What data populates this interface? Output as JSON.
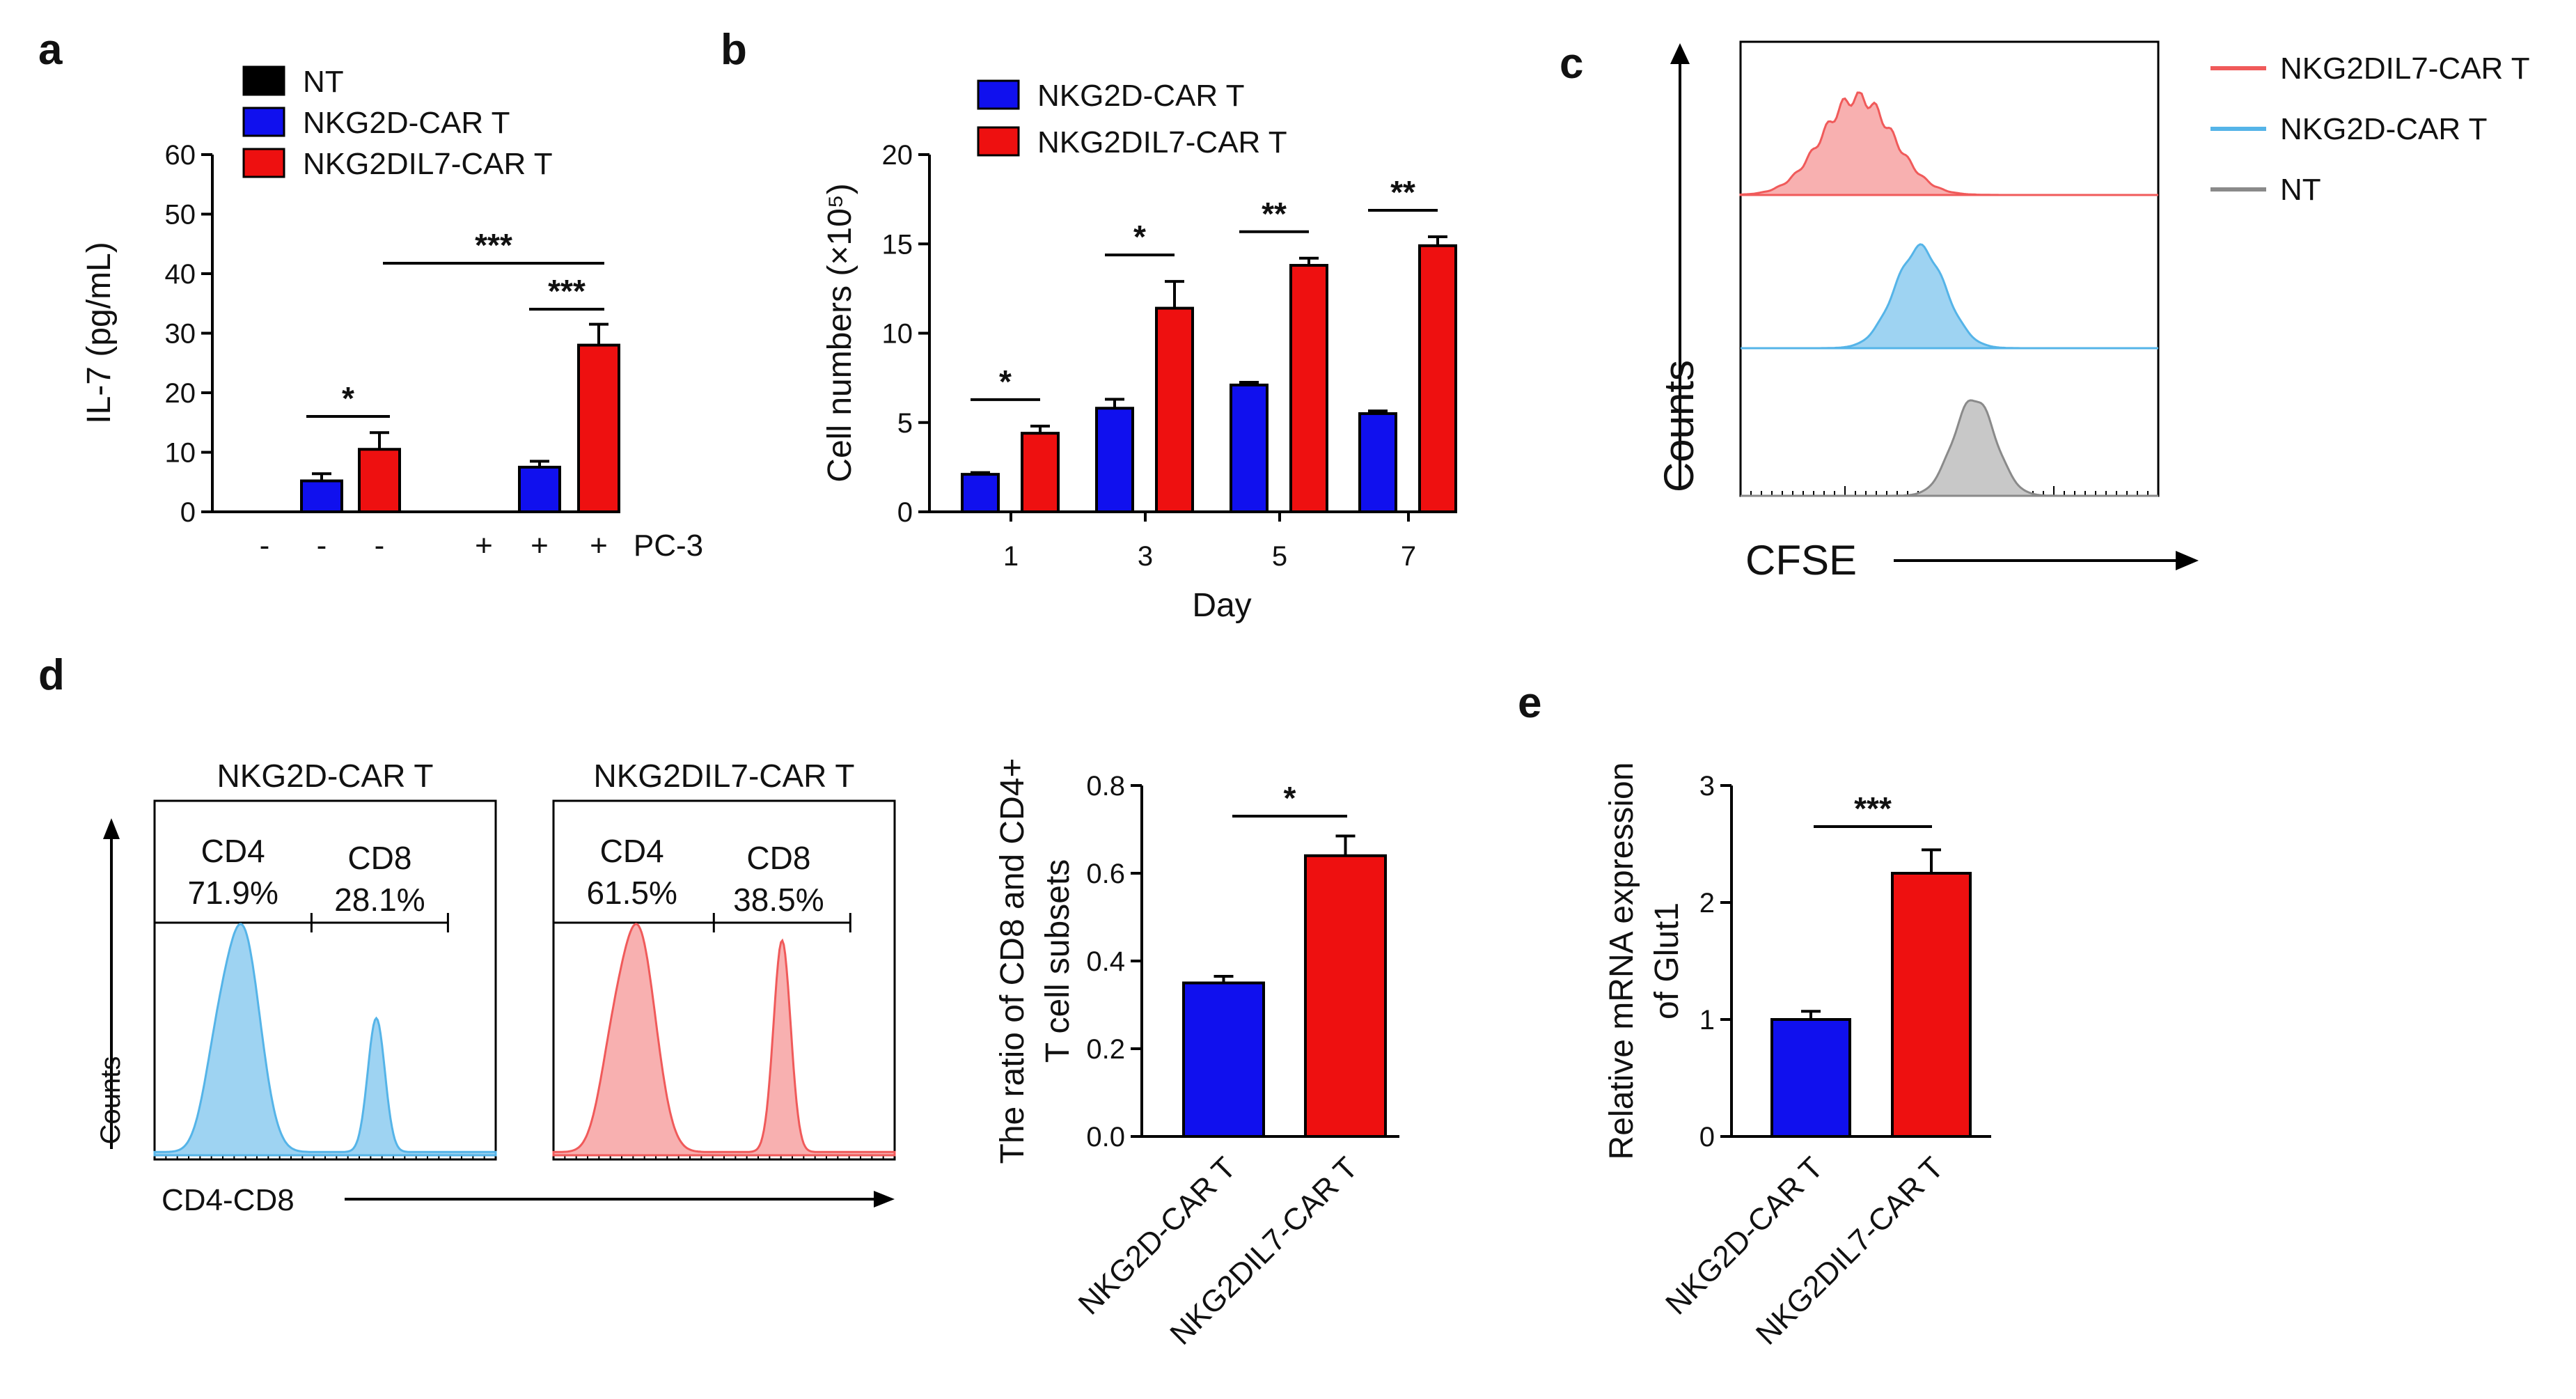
{
  "figure": {
    "panels": {
      "a": {
        "letter": "a"
      },
      "b": {
        "letter": "b"
      },
      "c": {
        "letter": "c"
      },
      "d": {
        "letter": "d"
      },
      "e": {
        "letter": "e"
      }
    }
  },
  "colors": {
    "nt": "#000000",
    "nkg2d": "#1010EE",
    "nkg2dil7": "#EE1010",
    "flow_blue": "#55B4E8",
    "flow_blue_fill": "#9ED3F2",
    "flow_red": "#F05A5A",
    "flow_red_fill": "#F8B0B0",
    "flow_grey": "#8A8A8A",
    "flow_grey_fill": "#C8C8C8"
  },
  "chart_data": [
    {
      "id": "a",
      "type": "bar",
      "ylabel": "IL-7 (pg/mL)",
      "ylim": [
        0,
        60
      ],
      "yticks": [
        "0",
        "10",
        "20",
        "30",
        "40",
        "50",
        "60"
      ],
      "legend": [
        "NT",
        "NKG2D-CAR T",
        "NKG2DIL7-CAR T"
      ],
      "condition_label": "PC-3",
      "conditions": [
        "-",
        "-",
        "-",
        "+",
        "+",
        "+"
      ],
      "series": [
        {
          "name": "NT",
          "values": [
            0,
            0
          ],
          "errors": [
            0,
            0
          ]
        },
        {
          "name": "NKG2D-CAR T",
          "values": [
            5.2,
            7.5
          ],
          "errors": [
            1.2,
            1.0
          ]
        },
        {
          "name": "NKG2DIL7-CAR T",
          "values": [
            10.5,
            28.0
          ],
          "errors": [
            2.8,
            3.5
          ]
        }
      ],
      "significance": [
        "*",
        "***",
        "***"
      ]
    },
    {
      "id": "b",
      "type": "bar",
      "ylabel": "Cell numbers (×10⁵)",
      "xlabel": "Day",
      "ylim": [
        0,
        20
      ],
      "yticks": [
        "0",
        "5",
        "10",
        "15",
        "20"
      ],
      "categories": [
        "1",
        "3",
        "5",
        "7"
      ],
      "legend": [
        "NKG2D-CAR T",
        "NKG2DIL7-CAR T"
      ],
      "series": [
        {
          "name": "NKG2D-CAR T",
          "values": [
            2.1,
            5.8,
            7.1,
            5.5
          ],
          "errors": [
            0.1,
            0.5,
            0.15,
            0.15
          ]
        },
        {
          "name": "NKG2DIL7-CAR T",
          "values": [
            4.4,
            11.4,
            13.8,
            14.9
          ],
          "errors": [
            0.4,
            1.5,
            0.4,
            0.5
          ]
        }
      ],
      "significance": [
        "*",
        "*",
        "**",
        "**"
      ]
    },
    {
      "id": "c",
      "type": "histogram",
      "xlabel": "CFSE",
      "ylabel": "Counts",
      "legend": [
        "NKG2DIL7-CAR T",
        "NKG2D-CAR T",
        "NT"
      ],
      "peak_positions_relative": [
        0.28,
        0.43,
        0.56
      ]
    },
    {
      "id": "d-flow",
      "type": "histogram",
      "xlabel": "CD4-CD8",
      "ylabel": "Counts",
      "plots": [
        {
          "title": "NKG2D-CAR T",
          "gates": [
            {
              "label": "CD4",
              "percent": "71.9%"
            },
            {
              "label": "CD8",
              "percent": "28.1%"
            }
          ]
        },
        {
          "title": "NKG2DIL7-CAR T",
          "gates": [
            {
              "label": "CD4",
              "percent": "61.5%"
            },
            {
              "label": "CD8",
              "percent": "38.5%"
            }
          ]
        }
      ]
    },
    {
      "id": "d-bar",
      "type": "bar",
      "ylabel": [
        "The ratio of CD8 and CD4+",
        "T cell subsets"
      ],
      "ylim": [
        0,
        0.8
      ],
      "yticks": [
        "0.0",
        "0.2",
        "0.4",
        "0.6",
        "0.8"
      ],
      "categories": [
        "NKG2D-CAR T",
        "NKG2DIL7-CAR T"
      ],
      "values": [
        0.35,
        0.64
      ],
      "errors": [
        0.015,
        0.045
      ],
      "significance": [
        "*"
      ]
    },
    {
      "id": "e",
      "type": "bar",
      "ylabel": [
        "Relative mRNA expression",
        "of Glut1"
      ],
      "ylim": [
        0,
        3
      ],
      "yticks": [
        "0",
        "1",
        "2",
        "3"
      ],
      "categories": [
        "NKG2D-CAR T",
        "NKG2DIL7-CAR T"
      ],
      "values": [
        1.0,
        2.25
      ],
      "errors": [
        0.07,
        0.2
      ],
      "significance": [
        "***"
      ]
    }
  ]
}
